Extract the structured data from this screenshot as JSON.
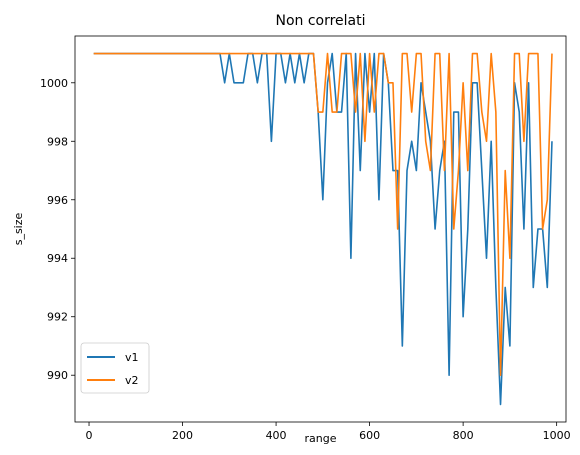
{
  "chart_data": {
    "type": "line",
    "title": "Non correlati",
    "xlabel": "range",
    "ylabel": "s_size",
    "xlim": [
      -30,
      1020
    ],
    "ylim": [
      988.4,
      1001.6
    ],
    "xticks": [
      0,
      200,
      400,
      600,
      800,
      1000
    ],
    "yticks": [
      990,
      992,
      994,
      996,
      998,
      1000
    ],
    "legend_position": "lower-left",
    "grid": false,
    "x": [
      10,
      20,
      30,
      40,
      50,
      60,
      70,
      80,
      90,
      100,
      110,
      120,
      130,
      140,
      150,
      160,
      170,
      180,
      190,
      200,
      210,
      220,
      230,
      240,
      250,
      260,
      270,
      280,
      290,
      300,
      310,
      320,
      330,
      340,
      350,
      360,
      370,
      380,
      390,
      400,
      410,
      420,
      430,
      440,
      450,
      460,
      470,
      480,
      490,
      500,
      510,
      520,
      530,
      540,
      550,
      560,
      570,
      580,
      590,
      600,
      610,
      620,
      630,
      640,
      650,
      660,
      670,
      680,
      690,
      700,
      710,
      720,
      730,
      740,
      750,
      760,
      770,
      780,
      790,
      800,
      810,
      820,
      830,
      840,
      850,
      860,
      870,
      880,
      890,
      900,
      910,
      920,
      930,
      940,
      950,
      960,
      970,
      980,
      990
    ],
    "series": [
      {
        "name": "v1",
        "color": "#1f77b4",
        "values": [
          1001,
          1001,
          1001,
          1001,
          1001,
          1001,
          1001,
          1001,
          1001,
          1001,
          1001,
          1001,
          1001,
          1001,
          1001,
          1001,
          1001,
          1001,
          1001,
          1001,
          1001,
          1001,
          1001,
          1001,
          1001,
          1001,
          1001,
          1001,
          1000,
          1001,
          1000,
          1000,
          1000,
          1001,
          1001,
          1000,
          1001,
          1001,
          998,
          1001,
          1001,
          1000,
          1001,
          1000,
          1001,
          1000,
          1001,
          1001,
          999,
          996,
          1000,
          1001,
          999,
          999,
          1001,
          994,
          1001,
          997,
          1001,
          999,
          1001,
          996,
          1001,
          1000,
          997,
          997,
          991,
          997,
          998,
          997,
          1000,
          999,
          998,
          995,
          997,
          998,
          990,
          999,
          999,
          992,
          995,
          1000,
          1000,
          997,
          994,
          998,
          993,
          989,
          993,
          991,
          1000,
          999,
          995,
          1000,
          993,
          995,
          995,
          993,
          998
        ]
      },
      {
        "name": "v2",
        "color": "#ff7f0e",
        "values": [
          1001,
          1001,
          1001,
          1001,
          1001,
          1001,
          1001,
          1001,
          1001,
          1001,
          1001,
          1001,
          1001,
          1001,
          1001,
          1001,
          1001,
          1001,
          1001,
          1001,
          1001,
          1001,
          1001,
          1001,
          1001,
          1001,
          1001,
          1001,
          1001,
          1001,
          1001,
          1001,
          1001,
          1001,
          1001,
          1001,
          1001,
          1001,
          1001,
          1001,
          1001,
          1001,
          1001,
          1001,
          1001,
          1001,
          1001,
          1001,
          999,
          999,
          1001,
          999,
          999,
          1001,
          1001,
          1001,
          999,
          1001,
          998,
          1001,
          999,
          1001,
          1001,
          1000,
          1000,
          995,
          1001,
          1001,
          999,
          1001,
          1001,
          998,
          997,
          1001,
          1001,
          997,
          1001,
          995,
          997,
          1000,
          997,
          1001,
          1001,
          999,
          998,
          1001,
          999,
          990,
          997,
          994,
          1001,
          1001,
          998,
          1001,
          1001,
          1001,
          995,
          996,
          1001
        ]
      }
    ]
  }
}
